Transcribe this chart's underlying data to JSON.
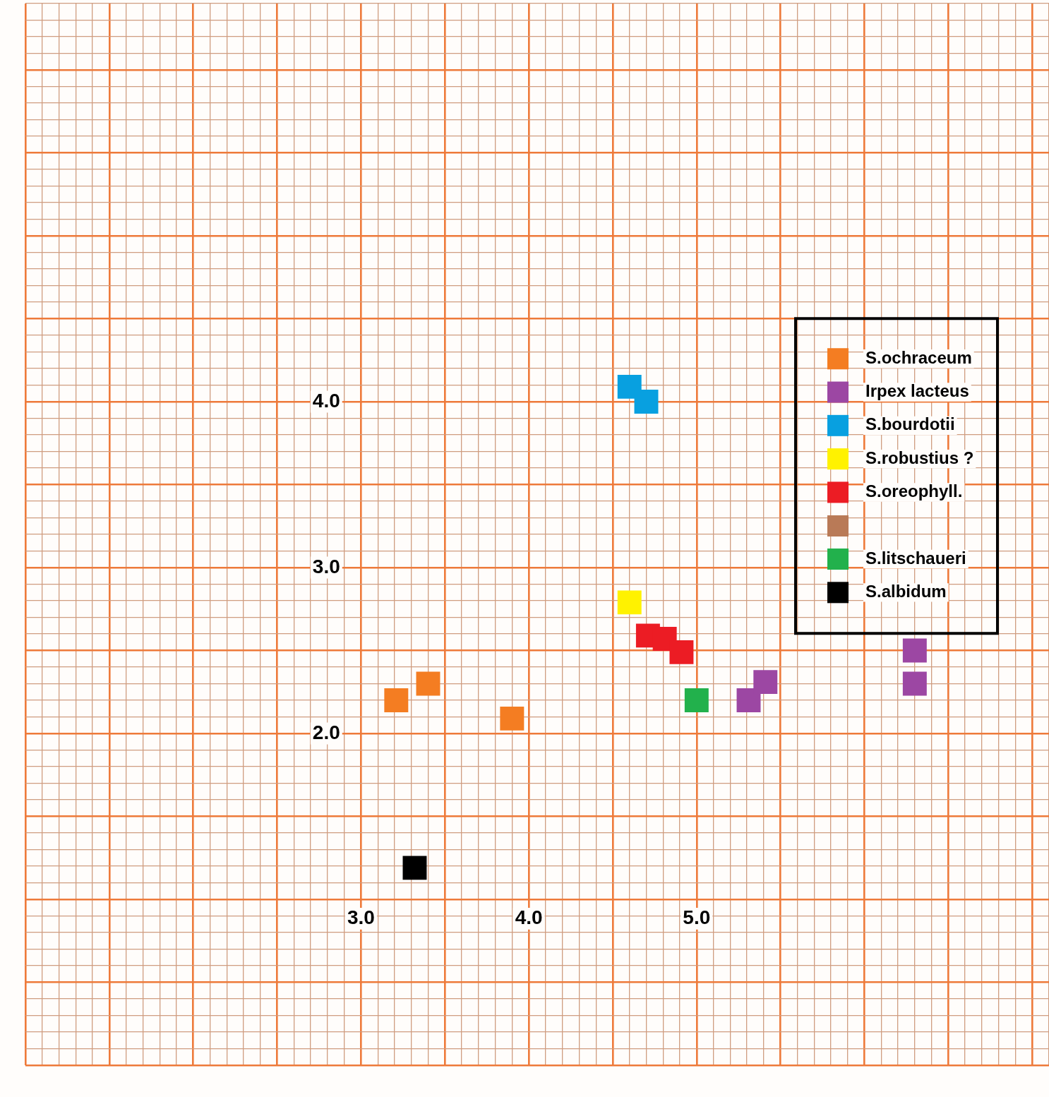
{
  "chart_data": {
    "type": "scatter",
    "series": [
      {
        "name": "S.ochraceum",
        "color": "#f47d22",
        "x": [
          3.21,
          3.4,
          3.9
        ],
        "values": [
          2.2,
          2.3,
          2.09
        ]
      },
      {
        "name": "Irpex lacteus",
        "color": "#9c47a3",
        "x": [
          5.31,
          5.41,
          6.3,
          6.3
        ],
        "values": [
          2.2,
          2.31,
          2.5,
          2.3
        ]
      },
      {
        "name": "S.bourdotii",
        "color": "#08a0e0",
        "x": [
          4.6,
          4.7
        ],
        "values": [
          4.09,
          4.0
        ]
      },
      {
        "name": "S.robustius ?",
        "color": "#fff200",
        "x": [
          4.6
        ],
        "values": [
          2.79
        ]
      },
      {
        "name": "S.oreophyll.",
        "color": "#ec1c24",
        "x": [
          4.71,
          4.81,
          4.91
        ],
        "values": [
          2.59,
          2.57,
          2.49
        ]
      },
      {
        "name": "S.litschaueri",
        "color": "#22b14c",
        "x": [
          5.0
        ],
        "values": [
          2.2
        ]
      },
      {
        "name": "S.albidum",
        "color": "#000000",
        "x": [
          3.32
        ],
        "values": [
          1.19
        ]
      }
    ],
    "xlim": [
      1,
      7.1
    ],
    "ylim": [
      0,
      6.4
    ],
    "xticks": [
      {
        "value": 1,
        "label": null
      },
      {
        "value": 1.1,
        "label": null
      },
      {
        "value": 1.2,
        "label": null
      },
      {
        "value": 1.3,
        "label": null
      },
      {
        "value": 1.4,
        "label": null
      },
      {
        "value": 1.5,
        "label": null
      },
      {
        "value": 1.6,
        "label": null
      },
      {
        "value": 1.7,
        "label": null
      },
      {
        "value": 1.8,
        "label": null
      },
      {
        "value": 1.9,
        "label": null
      },
      {
        "value": 2,
        "label": null
      },
      {
        "value": 2.1,
        "label": null
      },
      {
        "value": 2.2,
        "label": null
      },
      {
        "value": 2.3,
        "label": null
      },
      {
        "value": 2.4,
        "label": null
      },
      {
        "value": 2.5,
        "label": null
      },
      {
        "value": 2.6,
        "label": null
      },
      {
        "value": 2.7,
        "label": null
      },
      {
        "value": 2.8,
        "label": null
      },
      {
        "value": 2.9,
        "label": null
      },
      {
        "value": 3,
        "label": "3.0"
      },
      {
        "value": 3.1,
        "label": null
      },
      {
        "value": 3.2,
        "label": null
      },
      {
        "value": 3.3,
        "label": null
      },
      {
        "value": 3.4,
        "label": null
      },
      {
        "value": 3.5,
        "label": null
      },
      {
        "value": 3.6,
        "label": null
      },
      {
        "value": 3.7,
        "label": null
      },
      {
        "value": 3.8,
        "label": null
      },
      {
        "value": 3.9,
        "label": null
      },
      {
        "value": 4,
        "label": "4.0"
      },
      {
        "value": 4.1,
        "label": null
      },
      {
        "value": 4.2,
        "label": null
      },
      {
        "value": 4.3,
        "label": null
      },
      {
        "value": 4.4,
        "label": null
      },
      {
        "value": 4.5,
        "label": null
      },
      {
        "value": 4.6,
        "label": null
      },
      {
        "value": 4.7,
        "label": null
      },
      {
        "value": 4.8,
        "label": null
      },
      {
        "value": 4.9,
        "label": null
      },
      {
        "value": 5,
        "label": "5.0"
      },
      {
        "value": 5.1,
        "label": null
      },
      {
        "value": 5.2,
        "label": null
      },
      {
        "value": 5.3,
        "label": null
      },
      {
        "value": 5.4,
        "label": null
      },
      {
        "value": 5.5,
        "label": null
      },
      {
        "value": 5.6,
        "label": null
      },
      {
        "value": 5.7,
        "label": null
      },
      {
        "value": 5.8,
        "label": null
      },
      {
        "value": 5.9,
        "label": null
      },
      {
        "value": 6,
        "label": null
      },
      {
        "value": 6.1,
        "label": null
      },
      {
        "value": 6.2,
        "label": null
      },
      {
        "value": 6.3,
        "label": null
      },
      {
        "value": 6.4,
        "label": null
      },
      {
        "value": 6.5,
        "label": null
      },
      {
        "value": 6.6,
        "label": null
      },
      {
        "value": 6.7,
        "label": null
      },
      {
        "value": 6.8,
        "label": null
      },
      {
        "value": 6.9,
        "label": null
      },
      {
        "value": 7,
        "label": null
      },
      {
        "value": 7.1,
        "label": null
      }
    ],
    "yticks": [
      {
        "value": 0,
        "label": null
      },
      {
        "value": 0.1,
        "label": null
      },
      {
        "value": 0.2,
        "label": null
      },
      {
        "value": 0.3,
        "label": null
      },
      {
        "value": 0.4,
        "label": null
      },
      {
        "value": 0.5,
        "label": null
      },
      {
        "value": 0.6,
        "label": null
      },
      {
        "value": 0.7,
        "label": null
      },
      {
        "value": 0.8,
        "label": null
      },
      {
        "value": 0.9,
        "label": null
      },
      {
        "value": 1,
        "label": null
      },
      {
        "value": 1.1,
        "label": null
      },
      {
        "value": 1.2,
        "label": null
      },
      {
        "value": 1.3,
        "label": null
      },
      {
        "value": 1.4,
        "label": null
      },
      {
        "value": 1.5,
        "label": null
      },
      {
        "value": 1.6,
        "label": null
      },
      {
        "value": 1.7,
        "label": null
      },
      {
        "value": 1.8,
        "label": null
      },
      {
        "value": 1.9,
        "label": null
      },
      {
        "value": 2,
        "label": "2.0"
      },
      {
        "value": 2.1,
        "label": null
      },
      {
        "value": 2.2,
        "label": null
      },
      {
        "value": 2.3,
        "label": null
      },
      {
        "value": 2.4,
        "label": null
      },
      {
        "value": 2.5,
        "label": null
      },
      {
        "value": 2.6,
        "label": null
      },
      {
        "value": 2.7,
        "label": null
      },
      {
        "value": 2.8,
        "label": null
      },
      {
        "value": 2.9,
        "label": null
      },
      {
        "value": 3,
        "label": "3.0"
      },
      {
        "value": 3.1,
        "label": null
      },
      {
        "value": 3.2,
        "label": null
      },
      {
        "value": 3.3,
        "label": null
      },
      {
        "value": 3.4,
        "label": null
      },
      {
        "value": 3.5,
        "label": null
      },
      {
        "value": 3.6,
        "label": null
      },
      {
        "value": 3.7,
        "label": null
      },
      {
        "value": 3.8,
        "label": null
      },
      {
        "value": 3.9,
        "label": null
      },
      {
        "value": 4,
        "label": "4.0"
      },
      {
        "value": 4.1,
        "label": null
      },
      {
        "value": 4.2,
        "label": null
      },
      {
        "value": 4.3,
        "label": null
      },
      {
        "value": 4.4,
        "label": null
      },
      {
        "value": 4.5,
        "label": null
      },
      {
        "value": 4.6,
        "label": null
      },
      {
        "value": 4.7,
        "label": null
      },
      {
        "value": 4.8,
        "label": null
      },
      {
        "value": 4.9,
        "label": null
      },
      {
        "value": 5,
        "label": null
      },
      {
        "value": 5.1,
        "label": null
      },
      {
        "value": 5.2,
        "label": null
      },
      {
        "value": 5.3,
        "label": null
      },
      {
        "value": 5.4,
        "label": null
      },
      {
        "value": 5.5,
        "label": null
      },
      {
        "value": 5.6,
        "label": null
      },
      {
        "value": 5.7,
        "label": null
      },
      {
        "value": 5.8,
        "label": null
      },
      {
        "value": 5.9,
        "label": null
      },
      {
        "value": 6,
        "label": null
      },
      {
        "value": 6.1,
        "label": null
      },
      {
        "value": 6.2,
        "label": null
      },
      {
        "value": 6.3,
        "label": null
      },
      {
        "value": 6.4,
        "label": null
      }
    ],
    "grid": true,
    "legend": "right",
    "marker": "square"
  }
}
